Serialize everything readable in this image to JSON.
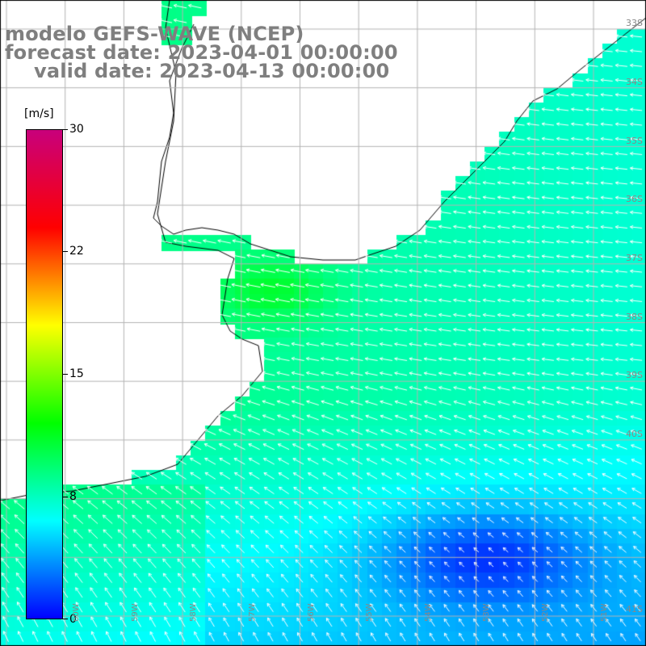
{
  "header": {
    "title_line1": "modelo GEFS-WAVE (NCEP)",
    "title_line2": "forecast date: 2023-04-01 00:00:00",
    "title_line3": "valid date: 2023-04-13 00:00:00"
  },
  "colorbar": {
    "unit": "[m/s]",
    "ticks": [
      "30",
      "22",
      "15",
      "8",
      "0"
    ],
    "tick_values": [
      30,
      22,
      15,
      8,
      0
    ],
    "range": [
      0,
      30
    ],
    "colors": [
      "#0000ff",
      "#00ffff",
      "#00ff00",
      "#ffff00",
      "#ff0000",
      "#c8007c"
    ]
  },
  "map": {
    "lat_labels": [
      "33S",
      "34S",
      "35S",
      "36S",
      "37S",
      "38S",
      "39S",
      "40S",
      "41S"
    ],
    "lon_labels": [
      "60W",
      "59W",
      "58W",
      "57W",
      "56W",
      "55W",
      "54W",
      "53W",
      "52W",
      "51W"
    ],
    "extent_lon": [
      -62,
      -51
    ],
    "extent_lat": [
      -42,
      -31
    ],
    "land_color": "#ffffff",
    "grid_color": "#b4b4b4",
    "vector_color": "#ffffff"
  }
}
